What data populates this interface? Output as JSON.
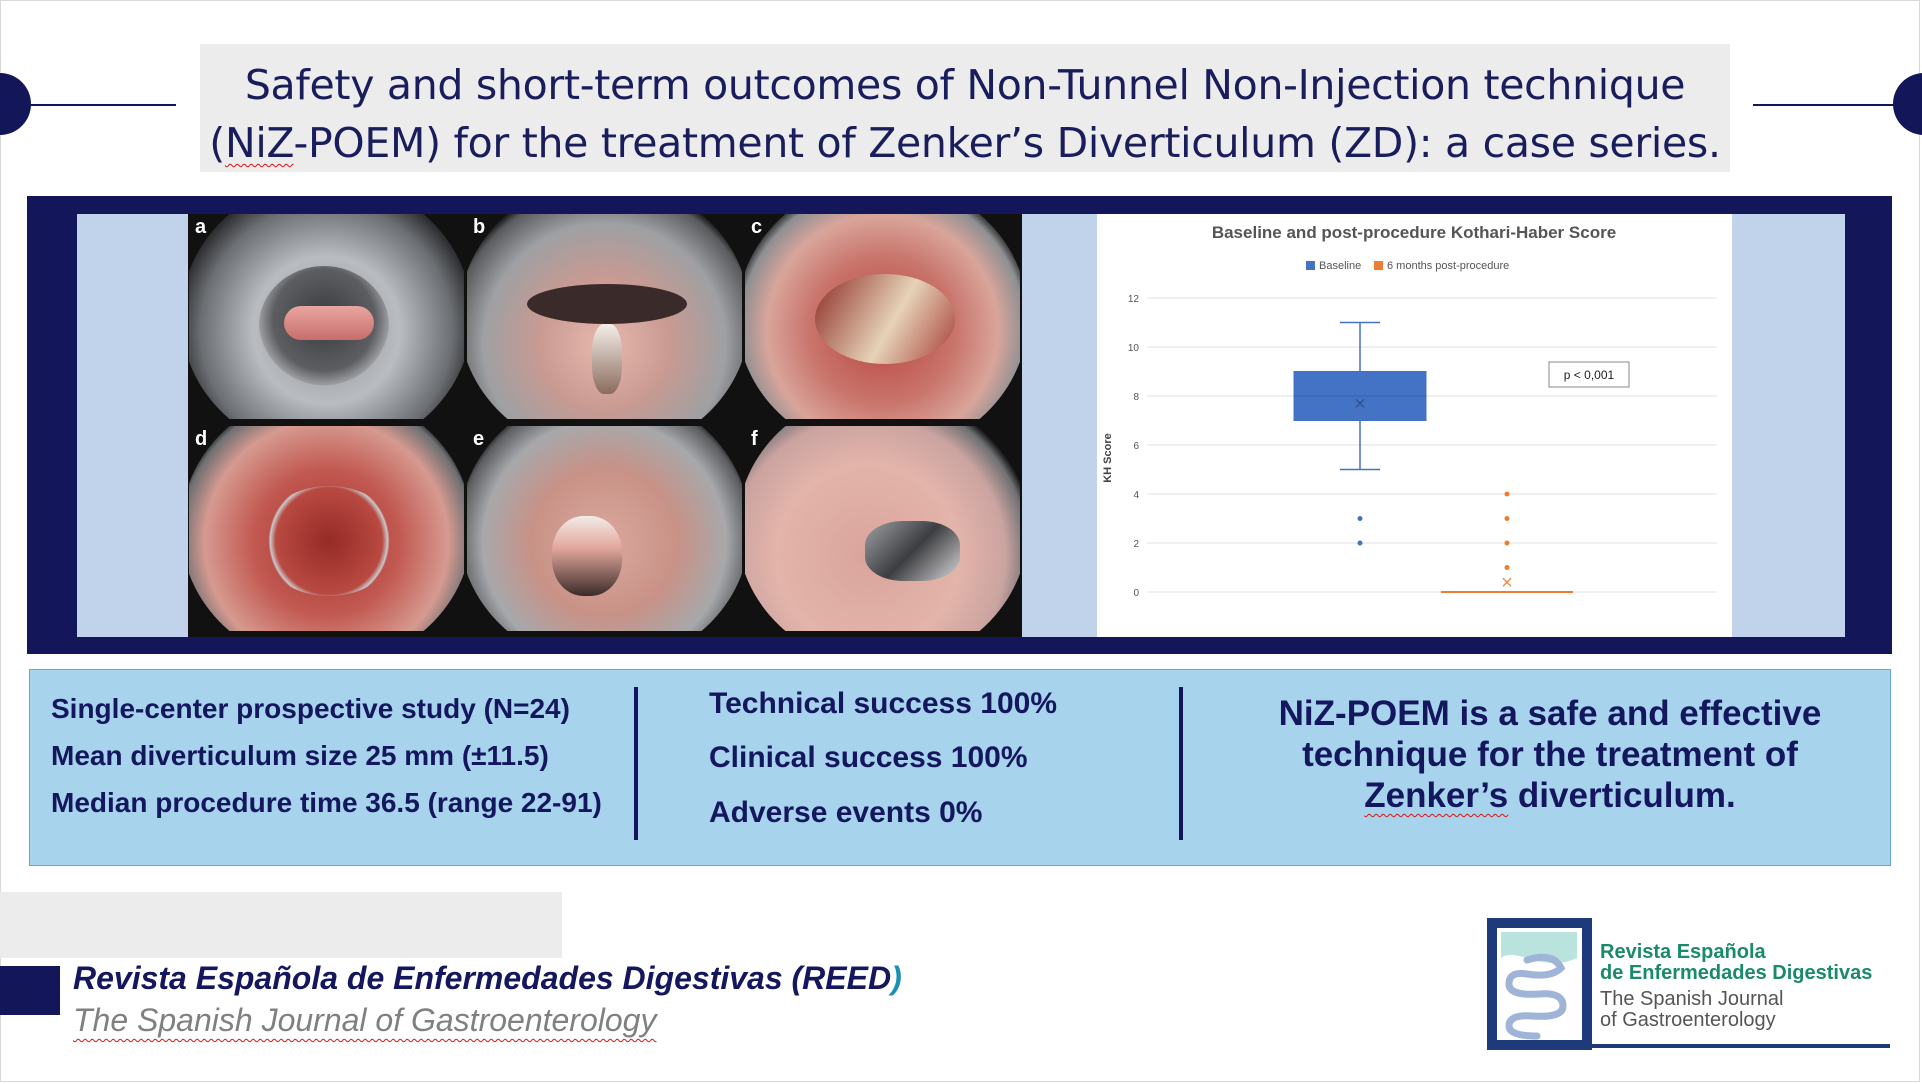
{
  "header": {
    "title_line1": "Safety and short-term outcomes of Non-Tunnel Non-Injection technique",
    "title_line2_a": "(",
    "title_line2_squig": "NiZ",
    "title_line2_b": "-POEM) for the treatment of Zenker’s Diverticulum (ZD): a case series."
  },
  "figure": {
    "panel_labels": [
      "a",
      "b",
      "c",
      "d",
      "e",
      "f"
    ]
  },
  "chart_data": {
    "type": "box",
    "title": "Baseline and post-procedure Kothari-Haber Score",
    "ylabel": "KH Score",
    "xlabel": "",
    "ylim": [
      0,
      12
    ],
    "yticks": [
      0,
      2,
      4,
      6,
      8,
      10,
      12
    ],
    "grid": true,
    "legend_position": "top-center",
    "annotation": "p < 0,001",
    "series": [
      {
        "name": "Baseline",
        "color": "#4472c4",
        "min": 5,
        "q1": 7,
        "median": 8,
        "q3": 9,
        "max": 11,
        "mean": 7.7,
        "outliers": [
          3,
          2
        ]
      },
      {
        "name": "6 months post-procedure",
        "color": "#ed7d31",
        "min": 0,
        "q1": 0,
        "median": 0,
        "q3": 0,
        "max": 0,
        "mean": 0.4,
        "outliers": [
          4,
          3,
          2,
          1
        ]
      }
    ]
  },
  "summary": {
    "col1": [
      "Single-center prospective study (N=24)",
      "Mean diverticulum size 25 mm (±11.5)",
      "Median procedure time 36.5 (range 22-91)"
    ],
    "col2": [
      "Technical success 100%",
      "Clinical success 100%",
      "Adverse events 0%"
    ],
    "conclusion_line1": "NiZ-POEM is a safe and effective",
    "conclusion_line2": "technique for the treatment of",
    "conclusion_line3_squig": "Zenker’s",
    "conclusion_line3_rest": " diverticulum."
  },
  "footer": {
    "journal_es": "Revista Española de Enfermedades Digestivas (REED",
    "journal_es_paren": ")",
    "journal_en": "The Spanish Journal of Gastroenterology",
    "logo_line1": "Revista Española",
    "logo_line2": "de Enfermedades Digestivas",
    "logo_line3": "The Spanish Journal",
    "logo_line4": "of Gastroenterology"
  },
  "colors": {
    "navy": "#13175a",
    "light_blue": "#a7d3ec",
    "baseline": "#4472c4",
    "post": "#ed7d31"
  }
}
